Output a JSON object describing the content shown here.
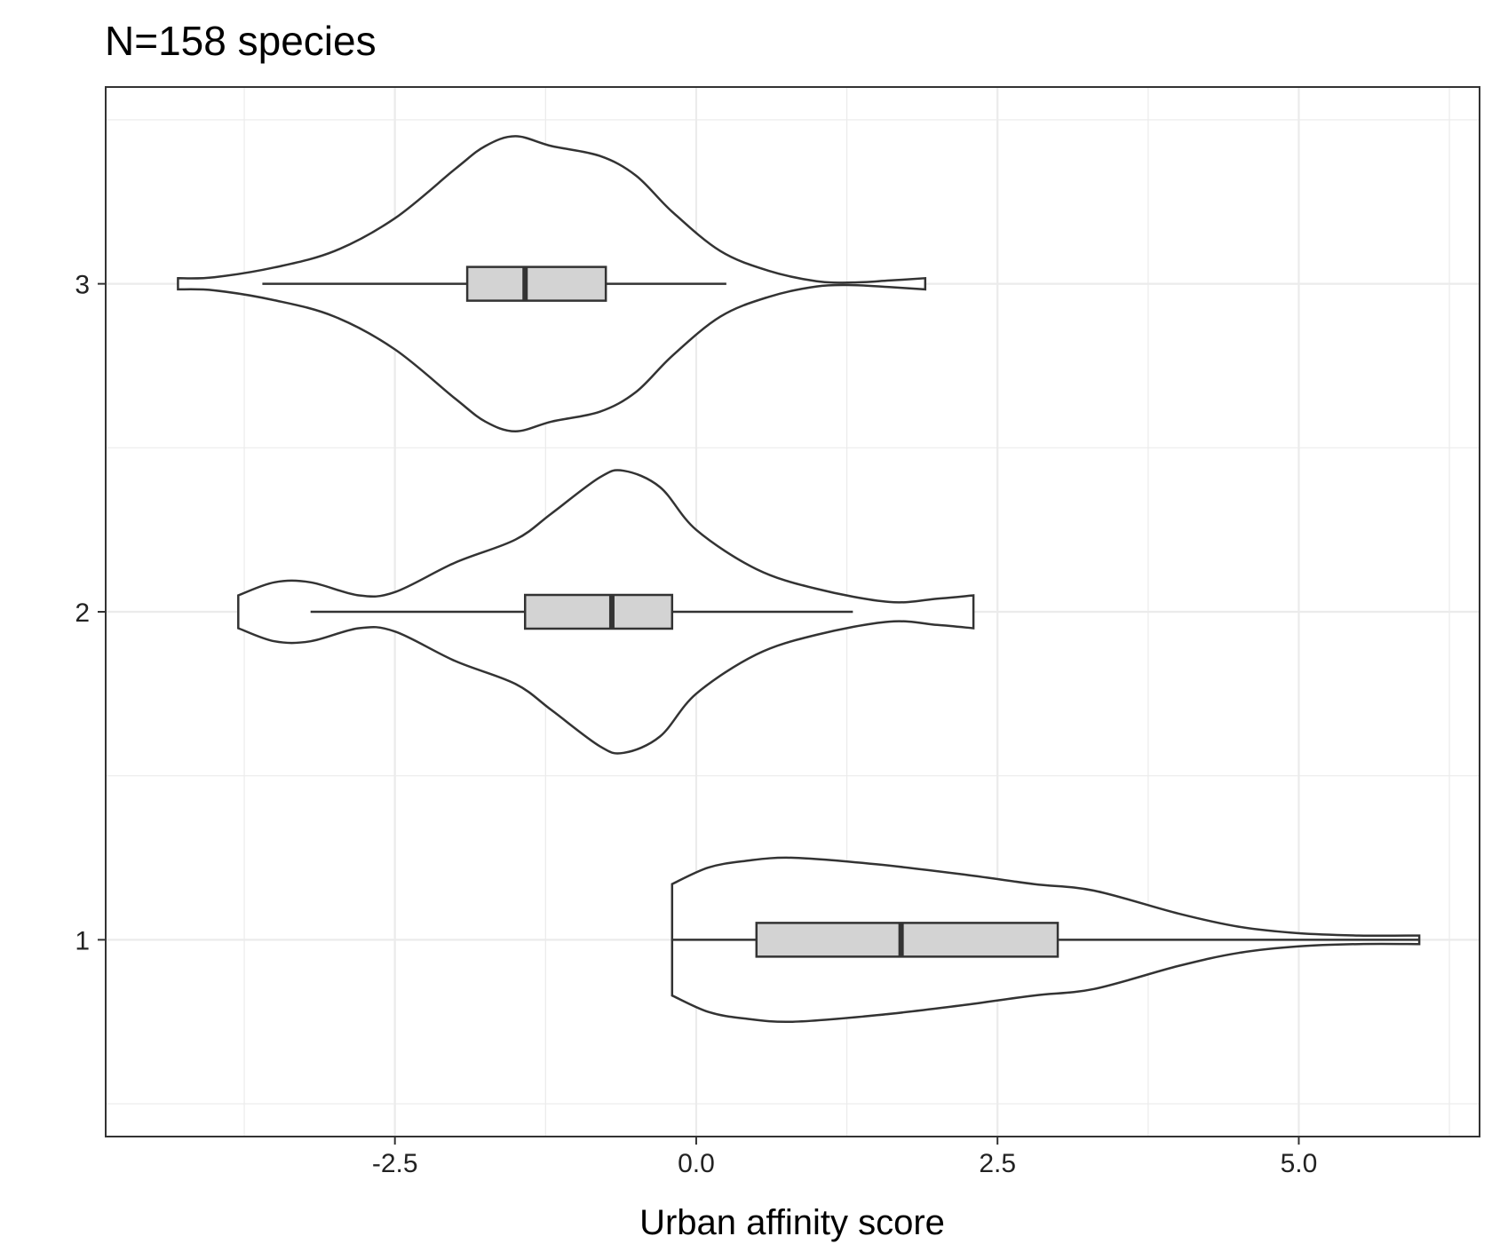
{
  "chart_data": {
    "type": "violin",
    "title": "N=158 species",
    "xlabel": "Urban affinity score",
    "ylabel": "",
    "xlim": [
      -4.9,
      6.5
    ],
    "ylim": [
      0.4,
      3.6
    ],
    "x_ticks": [
      -2.5,
      0.0,
      2.5,
      5.0
    ],
    "x_tick_labels": [
      "-2.5",
      "0.0",
      "2.5",
      "5.0"
    ],
    "y_ticks": [
      1,
      2,
      3
    ],
    "y_tick_labels": [
      "1",
      "2",
      "3"
    ],
    "grid": true,
    "legend": "none",
    "colors": {
      "box_fill": "#d3d3d3",
      "outline": "#333333",
      "grid": "#ebebeb"
    },
    "groups": [
      {
        "label": "3",
        "box": {
          "whisker_low": -3.6,
          "q1": -1.9,
          "median": -1.42,
          "q3": -0.75,
          "whisker_high": 0.25
        },
        "density": [
          [
            -4.3,
            0.017
          ],
          [
            -4.0,
            0.02
          ],
          [
            -3.5,
            0.05
          ],
          [
            -3.0,
            0.1
          ],
          [
            -2.5,
            0.2
          ],
          [
            -2.0,
            0.35
          ],
          [
            -1.75,
            0.42
          ],
          [
            -1.5,
            0.45
          ],
          [
            -1.2,
            0.42
          ],
          [
            -0.8,
            0.39
          ],
          [
            -0.5,
            0.33
          ],
          [
            -0.2,
            0.22
          ],
          [
            0.2,
            0.1
          ],
          [
            0.6,
            0.04
          ],
          [
            1.0,
            0.008
          ],
          [
            1.3,
            0.004
          ],
          [
            1.6,
            0.01
          ],
          [
            1.9,
            0.017
          ]
        ]
      },
      {
        "label": "2",
        "box": {
          "whisker_low": -3.2,
          "q1": -1.42,
          "median": -0.7,
          "q3": -0.2,
          "whisker_high": 1.3
        },
        "density": [
          [
            -3.8,
            0.05
          ],
          [
            -3.5,
            0.09
          ],
          [
            -3.2,
            0.09
          ],
          [
            -2.8,
            0.05
          ],
          [
            -2.5,
            0.06
          ],
          [
            -2.0,
            0.15
          ],
          [
            -1.5,
            0.22
          ],
          [
            -1.2,
            0.3
          ],
          [
            -0.8,
            0.41
          ],
          [
            -0.6,
            0.43
          ],
          [
            -0.3,
            0.38
          ],
          [
            0.0,
            0.25
          ],
          [
            0.5,
            0.13
          ],
          [
            1.0,
            0.07
          ],
          [
            1.6,
            0.03
          ],
          [
            2.0,
            0.04
          ],
          [
            2.3,
            0.05
          ]
        ]
      },
      {
        "label": "1",
        "box": {
          "whisker_low": -0.2,
          "q1": 0.5,
          "median": 1.7,
          "q3": 3.0,
          "whisker_high": 6.0
        },
        "density": [
          [
            -0.2,
            0.17
          ],
          [
            0.1,
            0.22
          ],
          [
            0.4,
            0.24
          ],
          [
            0.8,
            0.25
          ],
          [
            1.5,
            0.23
          ],
          [
            2.2,
            0.2
          ],
          [
            2.8,
            0.17
          ],
          [
            3.3,
            0.15
          ],
          [
            4.0,
            0.08
          ],
          [
            4.5,
            0.04
          ],
          [
            5.0,
            0.02
          ],
          [
            5.5,
            0.013
          ],
          [
            6.0,
            0.013
          ]
        ]
      }
    ]
  }
}
